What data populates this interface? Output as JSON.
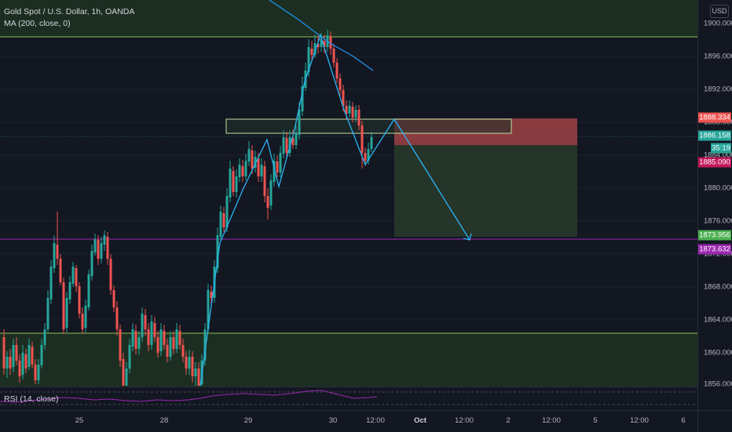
{
  "legend": {
    "title": "Gold Spot / U.S. Dollar, 1h, OANDA",
    "ma": "MA (200, close, 0)"
  },
  "rsi_label": "RSI (14, close)",
  "currency": "USD",
  "chart_data": {
    "type": "candlestick",
    "y_ticks": [
      "1900.000",
      "1896.000",
      "1892.000",
      "1888.000",
      "1884.000",
      "1880.000",
      "1876.000",
      "1872.000",
      "1868.000",
      "1864.000",
      "1860.000",
      "1856.000"
    ],
    "x_ticks": [
      {
        "label": "25",
        "bold": false
      },
      {
        "label": "28",
        "bold": false
      },
      {
        "label": "29",
        "bold": false
      },
      {
        "label": "30",
        "bold": false
      },
      {
        "label": "12:00",
        "bold": false
      },
      {
        "label": "Oct",
        "bold": true
      },
      {
        "label": "12:00",
        "bold": false
      },
      {
        "label": "2",
        "bold": false
      },
      {
        "label": "12:00",
        "bold": false
      },
      {
        "label": "5",
        "bold": false
      },
      {
        "label": "12:00",
        "bold": false
      },
      {
        "label": "6",
        "bold": false
      }
    ],
    "price_labels": [
      {
        "value": "1888.334",
        "color": "#ef5350"
      },
      {
        "value": "1886.158",
        "color": "#26a69a"
      },
      {
        "value": "35:19",
        "color": "#26a69a"
      },
      {
        "value": "1885.090",
        "color": "#c2185b"
      },
      {
        "value": "1873.956",
        "color": "#4caf50"
      },
      {
        "value": "1873.632",
        "color": "#9c27b0"
      }
    ]
  },
  "colors": {
    "up": "#26a69a",
    "down": "#ef5350",
    "zone_fill": "#1c2e22",
    "zone_line": "#8bc34a",
    "support_line": "#9c27b0",
    "drawing": "#2196f3",
    "stop_fill": "#d9534f",
    "target_fill": "#2b3f2e",
    "ma_line": "#2196f3"
  }
}
